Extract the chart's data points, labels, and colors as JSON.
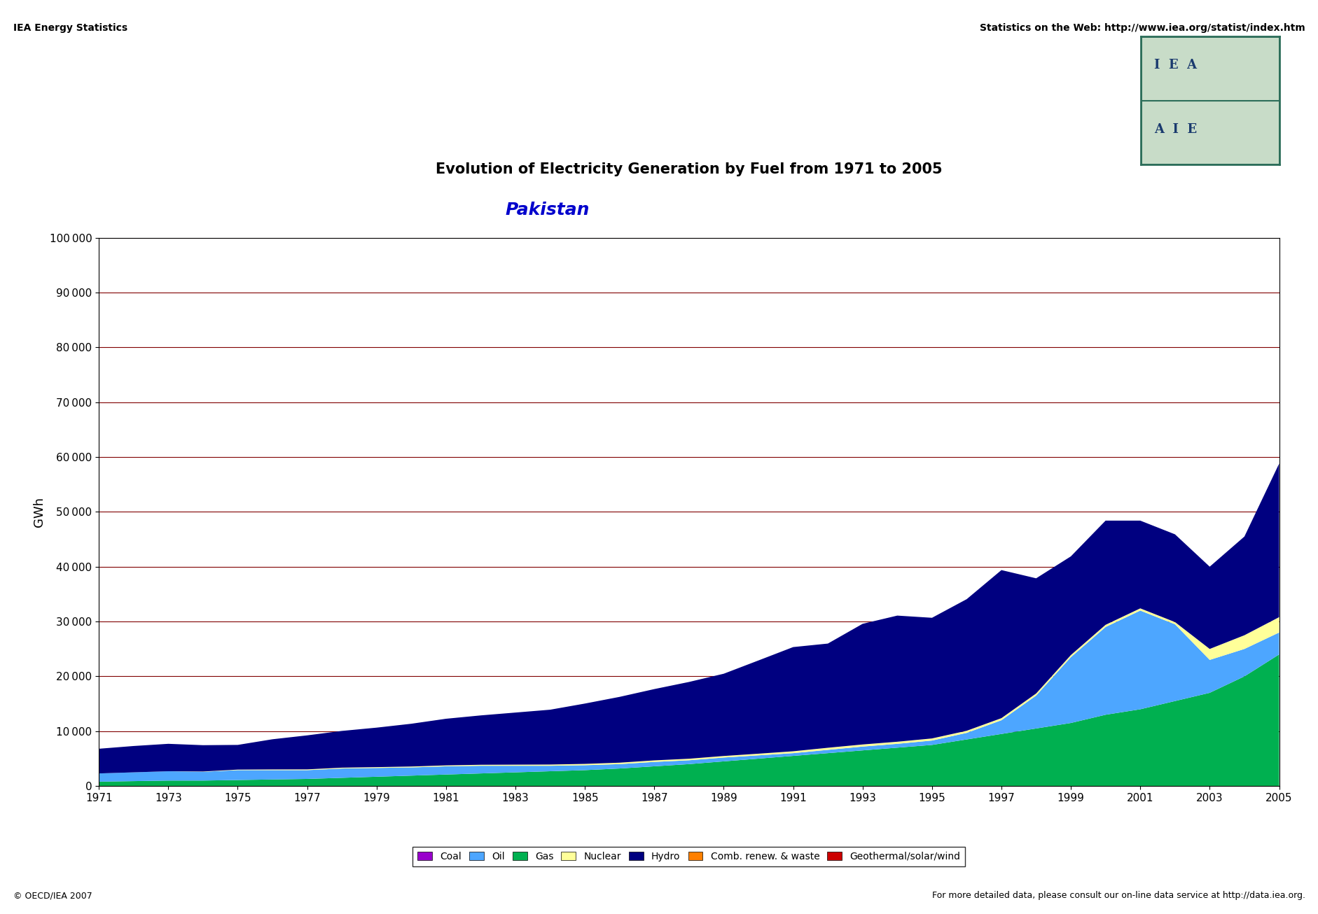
{
  "title": "Evolution of Electricity Generation by Fuel from 1971 to 2005",
  "subtitle": "Pakistan",
  "header_left": "IEA Energy Statistics",
  "header_right": "Statistics on the Web: http://www.iea.org/statist/index.htm",
  "footer_left": "© OECD/IEA 2007",
  "footer_right": "For more detailed data, please consult our on-line data service at http://data.iea.org.",
  "ylabel": "GWh",
  "ylim": [
    0,
    100000
  ],
  "yticks": [
    0,
    10000,
    20000,
    30000,
    40000,
    50000,
    60000,
    70000,
    80000,
    90000,
    100000
  ],
  "years": [
    1971,
    1972,
    1973,
    1974,
    1975,
    1976,
    1977,
    1978,
    1979,
    1980,
    1981,
    1982,
    1983,
    1984,
    1985,
    1986,
    1987,
    1988,
    1989,
    1990,
    1991,
    1992,
    1993,
    1994,
    1995,
    1996,
    1997,
    1998,
    1999,
    2000,
    2001,
    2002,
    2003,
    2004,
    2005
  ],
  "coal": [
    0,
    0,
    0,
    0,
    0,
    0,
    0,
    0,
    0,
    0,
    0,
    0,
    0,
    0,
    0,
    0,
    0,
    0,
    0,
    0,
    0,
    0,
    0,
    0,
    0,
    0,
    0,
    0,
    0,
    0,
    0,
    0,
    0,
    0,
    0
  ],
  "gas": [
    800,
    900,
    1000,
    1000,
    1100,
    1200,
    1300,
    1500,
    1700,
    1900,
    2100,
    2300,
    2500,
    2700,
    2900,
    3200,
    3600,
    4000,
    4500,
    5000,
    5500,
    6000,
    6500,
    7000,
    7500,
    8500,
    9500,
    10500,
    11500,
    13000,
    14000,
    15500,
    17000,
    20000,
    24000
  ],
  "oil": [
    1500,
    1600,
    1700,
    1600,
    1800,
    1700,
    1600,
    1700,
    1600,
    1500,
    1500,
    1400,
    1200,
    1000,
    900,
    800,
    800,
    700,
    700,
    600,
    500,
    600,
    700,
    700,
    800,
    1200,
    2500,
    6000,
    12000,
    16000,
    18000,
    14000,
    6000,
    5000,
    4000
  ],
  "nuclear": [
    0,
    0,
    0,
    50,
    100,
    130,
    140,
    150,
    150,
    160,
    170,
    180,
    200,
    220,
    240,
    260,
    280,
    280,
    280,
    300,
    340,
    380,
    380,
    380,
    380,
    380,
    380,
    380,
    380,
    400,
    400,
    400,
    2000,
    2500,
    2800
  ],
  "hydro": [
    4500,
    4800,
    5000,
    4800,
    4500,
    5500,
    6200,
    6700,
    7200,
    7800,
    8500,
    9000,
    9500,
    10000,
    11000,
    12000,
    13000,
    14000,
    15000,
    17000,
    19000,
    19000,
    22000,
    23000,
    22000,
    24000,
    27000,
    21000,
    18000,
    19000,
    16000,
    16000,
    15000,
    18000,
    28000
  ],
  "comb_renew": [
    0,
    0,
    0,
    0,
    0,
    0,
    0,
    0,
    0,
    0,
    0,
    0,
    0,
    0,
    0,
    0,
    0,
    0,
    0,
    0,
    0,
    0,
    0,
    0,
    0,
    0,
    0,
    0,
    0,
    0,
    0,
    0,
    0,
    0,
    0
  ],
  "geo_solar": [
    0,
    0,
    0,
    0,
    0,
    0,
    0,
    0,
    0,
    0,
    0,
    0,
    0,
    0,
    0,
    0,
    0,
    0,
    0,
    0,
    0,
    0,
    0,
    0,
    0,
    0,
    0,
    0,
    0,
    0,
    0,
    0,
    0,
    0,
    0
  ],
  "colors": {
    "coal": "#9900cc",
    "gas": "#00b050",
    "oil": "#4da6ff",
    "nuclear": "#ffff99",
    "hydro": "#000080",
    "comb_renew": "#ff8000",
    "geo_solar": "#cc0000"
  },
  "legend_labels": [
    "Coal",
    "Oil",
    "Gas",
    "Nuclear",
    "Hydro",
    "Comb. renew. & waste",
    "Geothermal/solar/wind"
  ],
  "legend_colors": [
    "#9900cc",
    "#4da6ff",
    "#00b050",
    "#ffff99",
    "#000080",
    "#ff8000",
    "#cc0000"
  ],
  "bg_color": "#ffffff",
  "grid_color": "#800000",
  "title_fontsize": 15,
  "subtitle_fontsize": 18,
  "axis_fontsize": 11,
  "header_fontsize": 10,
  "footer_fontsize": 9
}
